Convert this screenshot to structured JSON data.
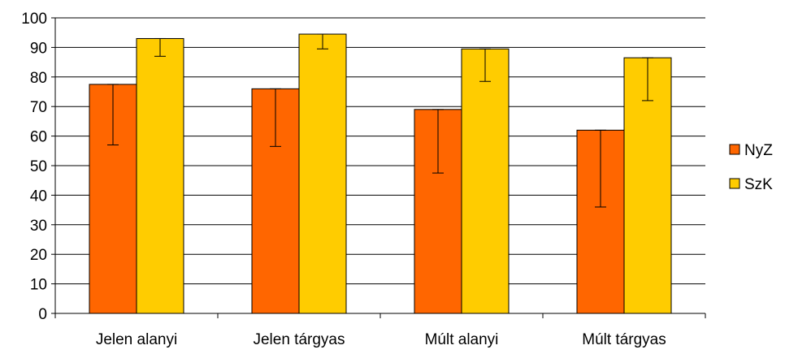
{
  "chart_data": {
    "type": "bar",
    "categories": [
      "Jelen alanyi",
      "Jelen tárgyas",
      "Múlt alanyi",
      "Múlt tárgyas"
    ],
    "series": [
      {
        "name": "NyZ",
        "color": "#ff6600",
        "values": [
          77.5,
          76,
          69,
          62
        ],
        "error_low": [
          57,
          56.5,
          47.5,
          36
        ],
        "error_high": [
          77.5,
          76,
          69,
          62
        ]
      },
      {
        "name": "SzK",
        "color": "#ffcc00",
        "values": [
          93,
          94.5,
          89.5,
          86.5
        ],
        "error_low": [
          87,
          89.5,
          78.5,
          72
        ],
        "error_high": [
          93,
          94.5,
          89.5,
          86.5
        ]
      }
    ],
    "title": "",
    "xlabel": "",
    "ylabel": "",
    "ylim": [
      0,
      100
    ],
    "yticks": [
      "0",
      "10",
      "20",
      "30",
      "40",
      "50",
      "60",
      "70",
      "80",
      "90",
      "100"
    ],
    "grid": true,
    "legend_position": "right"
  }
}
